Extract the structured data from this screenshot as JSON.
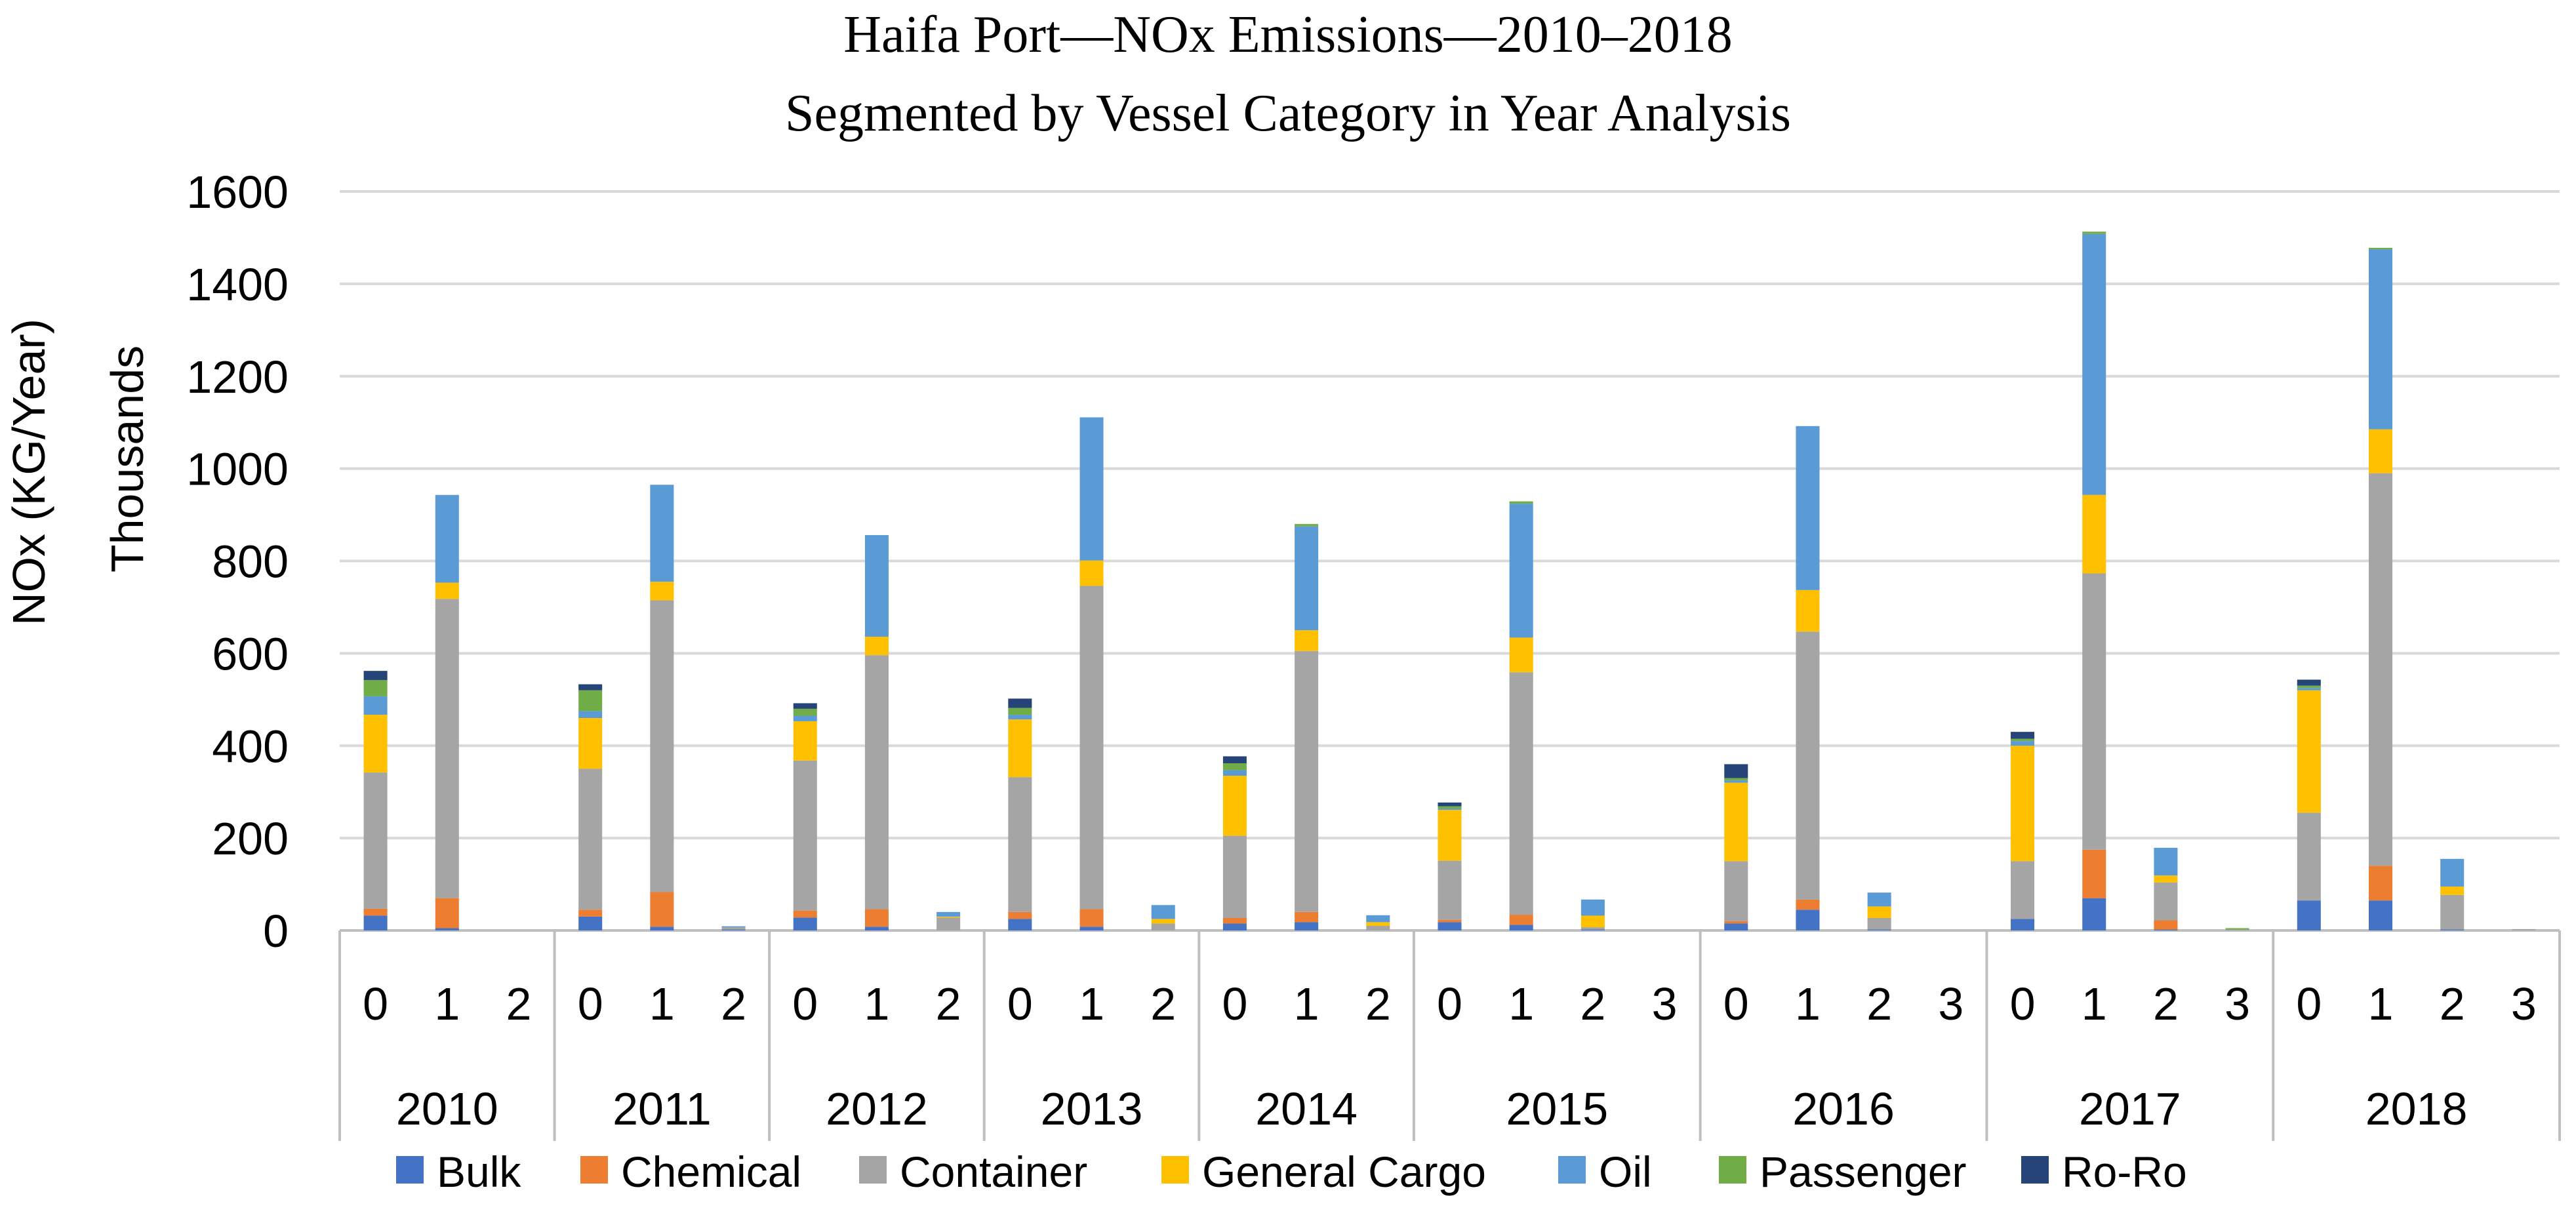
{
  "chart_data": {
    "type": "bar",
    "stacked": true,
    "title": "Haifa Port—NOx Emissions—2010–2018",
    "subtitle": "Segmented by Vessel Category in Year Analysis",
    "ylabel": "NOx (KG/Year)",
    "yunit": "Thousands",
    "xlabel": "",
    "ylim": [
      0,
      1600
    ],
    "yticks": [
      0,
      200,
      400,
      600,
      800,
      1000,
      1200,
      1400,
      1600
    ],
    "grid": true,
    "legend_position": "bottom",
    "groups": [
      {
        "label": "2010",
        "subs": [
          "0",
          "1",
          "2"
        ]
      },
      {
        "label": "2011",
        "subs": [
          "0",
          "1",
          "2"
        ]
      },
      {
        "label": "2012",
        "subs": [
          "0",
          "1",
          "2"
        ]
      },
      {
        "label": "2013",
        "subs": [
          "0",
          "1",
          "2"
        ]
      },
      {
        "label": "2014",
        "subs": [
          "0",
          "1",
          "2"
        ]
      },
      {
        "label": "2015",
        "subs": [
          "0",
          "1",
          "2",
          "3"
        ]
      },
      {
        "label": "2016",
        "subs": [
          "0",
          "1",
          "2",
          "3"
        ]
      },
      {
        "label": "2017",
        "subs": [
          "0",
          "1",
          "2",
          "3"
        ]
      },
      {
        "label": "2018",
        "subs": [
          "0",
          "1",
          "2",
          "3"
        ]
      }
    ],
    "categories": [
      "2010-0",
      "2010-1",
      "2010-2",
      "2011-0",
      "2011-1",
      "2011-2",
      "2012-0",
      "2012-1",
      "2012-2",
      "2013-0",
      "2013-1",
      "2013-2",
      "2014-0",
      "2014-1",
      "2014-2",
      "2015-0",
      "2015-1",
      "2015-2",
      "2015-3",
      "2016-0",
      "2016-1",
      "2016-2",
      "2016-3",
      "2017-0",
      "2017-1",
      "2017-2",
      "2017-3",
      "2018-0",
      "2018-1",
      "2018-2",
      "2018-3"
    ],
    "series": [
      {
        "name": "Bulk",
        "color": "#4472C4",
        "values": [
          32,
          5,
          0,
          30,
          8,
          2,
          28,
          8,
          0,
          25,
          8,
          0,
          15,
          18,
          0,
          18,
          12,
          2,
          0,
          15,
          45,
          2,
          0,
          25,
          70,
          2,
          0,
          65,
          65,
          2,
          0
        ]
      },
      {
        "name": "Chemical",
        "color": "#ED7D31",
        "values": [
          15,
          65,
          0,
          15,
          75,
          0,
          15,
          38,
          0,
          15,
          38,
          0,
          12,
          22,
          0,
          5,
          22,
          0,
          0,
          5,
          22,
          0,
          0,
          0,
          105,
          20,
          0,
          0,
          75,
          0,
          0
        ]
      },
      {
        "name": "Container",
        "color": "#A5A5A5",
        "values": [
          295,
          648,
          0,
          305,
          632,
          5,
          325,
          550,
          28,
          292,
          700,
          15,
          178,
          565,
          10,
          128,
          525,
          5,
          0,
          130,
          580,
          25,
          0,
          125,
          598,
          82,
          2,
          190,
          850,
          75,
          3
        ]
      },
      {
        "name": "General Cargo",
        "color": "#FFC000",
        "values": [
          125,
          35,
          0,
          110,
          40,
          0,
          85,
          40,
          2,
          125,
          55,
          10,
          130,
          45,
          8,
          110,
          75,
          25,
          0,
          170,
          90,
          25,
          0,
          250,
          170,
          15,
          0,
          265,
          95,
          18,
          0
        ]
      },
      {
        "name": "Oil",
        "color": "#5B9BD5",
        "values": [
          40,
          190,
          0,
          15,
          210,
          2,
          12,
          220,
          10,
          10,
          310,
          30,
          12,
          225,
          15,
          3,
          290,
          35,
          0,
          5,
          355,
          30,
          0,
          10,
          565,
          60,
          0,
          5,
          390,
          60,
          0
        ]
      },
      {
        "name": "Passenger",
        "color": "#70AD47",
        "values": [
          35,
          0,
          0,
          45,
          0,
          0,
          15,
          0,
          0,
          15,
          0,
          0,
          15,
          5,
          0,
          5,
          5,
          0,
          0,
          5,
          0,
          0,
          0,
          5,
          5,
          0,
          3,
          5,
          3,
          0,
          0
        ]
      },
      {
        "name": "Ro-Ro",
        "color": "#264478",
        "values": [
          20,
          0,
          0,
          13,
          0,
          0,
          12,
          0,
          0,
          20,
          0,
          0,
          15,
          0,
          0,
          8,
          0,
          0,
          0,
          30,
          0,
          0,
          0,
          15,
          0,
          0,
          0,
          13,
          0,
          0,
          0
        ]
      }
    ]
  }
}
